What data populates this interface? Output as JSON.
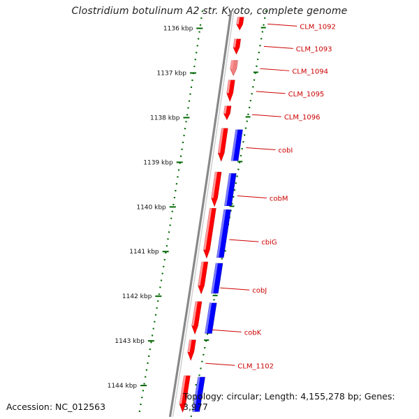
{
  "title": "Clostridium botulinum A2 str. Kyoto, complete genome",
  "accession": "Accession: NC_012563",
  "summary": "Topology: circular; Length: 4,155,278 bp; Genes: 3,977",
  "colors": {
    "forward": "#ff0000",
    "reverse": "#0000ff",
    "label": "#cc0000",
    "tick": "#006600",
    "backbone": "#888888"
  },
  "kbp_ticks": [
    {
      "label": "1136 kbp",
      "pos": 1136
    },
    {
      "label": "1137 kbp",
      "pos": 1137
    },
    {
      "label": "1138 kbp",
      "pos": 1138
    },
    {
      "label": "1139 kbp",
      "pos": 1139
    },
    {
      "label": "1140 kbp",
      "pos": 1140
    },
    {
      "label": "1141 kbp",
      "pos": 1141
    },
    {
      "label": "1142 kbp",
      "pos": 1142
    },
    {
      "label": "1143 kbp",
      "pos": 1143
    },
    {
      "label": "1144 kbp",
      "pos": 1144
    }
  ],
  "genes": [
    {
      "name": "CLM_1092",
      "start": 1135.75,
      "end": 1136.04,
      "strand": "+",
      "blast": false,
      "light": false,
      "label_at": 1135.95
    },
    {
      "name": "CLM_1093",
      "start": 1136.24,
      "end": 1136.58,
      "strand": "+",
      "blast": false,
      "light": false,
      "label_at": 1136.45
    },
    {
      "name": "CLM_1094",
      "start": 1136.72,
      "end": 1137.06,
      "strand": "+",
      "blast": false,
      "light": true,
      "label_at": 1136.95
    },
    {
      "name": "CLM_1095",
      "start": 1137.16,
      "end": 1137.64,
      "strand": "+",
      "blast": false,
      "light": false,
      "label_at": 1137.46
    },
    {
      "name": "CLM_1096",
      "start": 1137.74,
      "end": 1138.05,
      "strand": "+",
      "blast": false,
      "light": false,
      "label_at": 1137.98
    },
    {
      "name": "cobI",
      "start": 1138.24,
      "end": 1138.98,
      "strand": "+",
      "blast": true,
      "light": false,
      "label_at": 1138.72
    },
    {
      "name": "cobM",
      "start": 1139.22,
      "end": 1139.99,
      "strand": "+",
      "blast": true,
      "light": false,
      "label_at": 1139.8
    },
    {
      "name": "cbiG",
      "start": 1140.03,
      "end": 1141.15,
      "strand": "+",
      "blast": true,
      "light": false,
      "label_at": 1140.78
    },
    {
      "name": "cobJ",
      "start": 1141.23,
      "end": 1141.95,
      "strand": "+",
      "blast": true,
      "light": false,
      "label_at": 1141.86
    },
    {
      "name": "cobK",
      "start": 1142.12,
      "end": 1142.85,
      "strand": "+",
      "blast": true,
      "light": false,
      "label_at": 1142.8
    },
    {
      "name": "CLM_1102",
      "start": 1142.98,
      "end": 1143.44,
      "strand": "+",
      "blast": false,
      "light": false,
      "label_at": 1143.55
    },
    {
      "name": "",
      "start": 1143.78,
      "end": 1144.6,
      "strand": "+",
      "blast": true,
      "light": false,
      "label_at": null
    }
  ]
}
